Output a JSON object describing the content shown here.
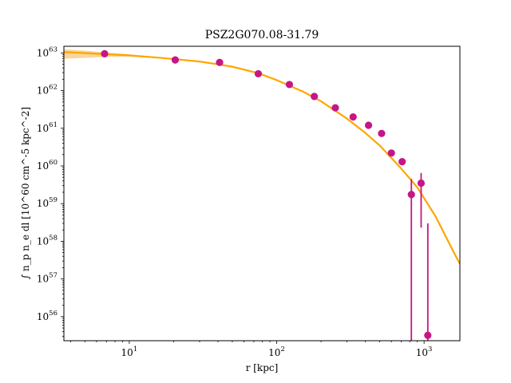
{
  "chart_data": {
    "type": "scatter",
    "title": "PSZ2G070.08-31.79",
    "xlabel": "r [kpc]",
    "ylabel": "∫ n_p n_e dl [10^60 cm^-5 kpc^-2]",
    "xscale": "log",
    "yscale": "log",
    "xlim": [
      3.6,
      1750
    ],
    "ylim": [
      2.3e+55,
      1.5e+63
    ],
    "x_ticks": [
      {
        "value": 10,
        "label_base": "10",
        "label_exp": "1"
      },
      {
        "value": 100,
        "label_base": "10",
        "label_exp": "2"
      },
      {
        "value": 1000,
        "label_base": "10",
        "label_exp": "3"
      }
    ],
    "y_ticks": [
      {
        "value": 1e+56,
        "label_base": "10",
        "label_exp": "56"
      },
      {
        "value": 1e+57,
        "label_base": "10",
        "label_exp": "57"
      },
      {
        "value": 1e+58,
        "label_base": "10",
        "label_exp": "58"
      },
      {
        "value": 1e+59,
        "label_base": "10",
        "label_exp": "59"
      },
      {
        "value": 1e+60,
        "label_base": "10",
        "label_exp": "60"
      },
      {
        "value": 1e+61,
        "label_base": "10",
        "label_exp": "61"
      },
      {
        "value": 1e+62,
        "label_base": "10",
        "label_exp": "62"
      },
      {
        "value": 1e+63,
        "label_base": "10",
        "label_exp": "63"
      }
    ],
    "series": [
      {
        "kind": "points",
        "color": "#c71585",
        "points": [
          {
            "x": 6.8,
            "y": 9.5e+62
          },
          {
            "x": 20.5,
            "y": 6.5e+62
          },
          {
            "x": 41,
            "y": 5.6e+62
          },
          {
            "x": 75,
            "y": 2.8e+62
          },
          {
            "x": 122,
            "y": 1.45e+62
          },
          {
            "x": 180,
            "y": 7e+61
          },
          {
            "x": 250,
            "y": 3.5e+61
          },
          {
            "x": 330,
            "y": 2e+61
          },
          {
            "x": 420,
            "y": 1.2e+61
          },
          {
            "x": 515,
            "y": 7.3e+60
          },
          {
            "x": 600,
            "y": 2.2e+60
          },
          {
            "x": 710,
            "y": 1.3e+60
          },
          {
            "x": 820,
            "y": 1.75e+59,
            "yerr_lo": 2.3e+55,
            "yerr_hi": 4.5e+59
          },
          {
            "x": 955,
            "y": 3.5e+59,
            "yerr_lo": 2.3e+58,
            "yerr_hi": 6.5e+59
          },
          {
            "x": 1060,
            "y": 3.2e+55,
            "yerr_lo": 2.3e+55,
            "yerr_hi": 3e+58
          }
        ]
      },
      {
        "kind": "model",
        "color": "#ffa500",
        "band_color": "#f5c77e",
        "x": [
          3.6,
          5,
          7,
          10,
          15,
          20,
          30,
          40,
          50,
          75,
          100,
          150,
          200,
          300,
          400,
          500,
          700,
          900,
          1200,
          1500,
          1750
        ],
        "y": [
          1.05e+63,
          9.9e+62,
          9.2e+62,
          8.6e+62,
          7.6e+62,
          6.9e+62,
          5.9e+62,
          5e+62,
          4.3e+62,
          2.9e+62,
          1.9e+62,
          9.5e+61,
          5.2e+61,
          1.8e+61,
          7.5e+60,
          3.5e+60,
          8.5e+59,
          2.7e+59,
          4.5e+58,
          8e+57,
          2.5e+57
        ],
        "band_lo": [
          7e+62,
          7.4e+62,
          7.8e+62,
          7.9e+62,
          7.3e+62,
          6.7e+62,
          5.8e+62,
          4.9e+62,
          4.2e+62,
          2.85e+62,
          1.85e+62,
          9.3e+61,
          5.1e+61,
          1.75e+61,
          7.3e+60,
          3.4e+60,
          8.2e+59,
          2.6e+59,
          4.3e+58,
          7.6e+57,
          2.4e+57
        ],
        "band_hi": [
          1.25e+63,
          1.15e+63,
          1.02e+63,
          9.2e+62,
          7.9e+62,
          7.1e+62,
          6e+62,
          5.1e+62,
          4.4e+62,
          2.95e+62,
          1.95e+62,
          9.7e+61,
          5.3e+61,
          1.85e+61,
          7.7e+60,
          3.6e+60,
          8.8e+59,
          2.8e+59,
          4.7e+58,
          8.4e+57,
          2.6e+57
        ]
      }
    ],
    "grid": false,
    "legend": "none"
  }
}
